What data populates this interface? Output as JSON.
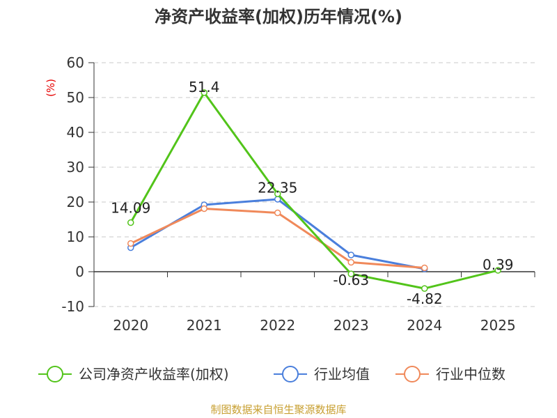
{
  "chart_data": {
    "type": "line",
    "title": "净资产收益率(加权)历年情况(%)",
    "ylabel": "(%)",
    "xlabel": "",
    "categories": [
      "2020",
      "2021",
      "2022",
      "2023",
      "2024",
      "2025"
    ],
    "ylim": [
      -10,
      60
    ],
    "yticks": [
      -10,
      0,
      10,
      20,
      30,
      40,
      50,
      60
    ],
    "grid": "horizontal-dashed",
    "legend_position": "bottom",
    "series": [
      {
        "name": "公司净资产收益率(加权)",
        "color": "#52c41a",
        "values": [
          14.09,
          51.4,
          22.35,
          -0.63,
          -4.82,
          0.39
        ],
        "labels": [
          "14.09",
          "51.4",
          "22.35",
          "-0.63",
          "-4.82",
          "0.39"
        ]
      },
      {
        "name": "行业均值",
        "color": "#4a7fdc",
        "values": [
          6.9,
          19.2,
          20.8,
          4.8,
          0.8,
          null
        ]
      },
      {
        "name": "行业中位数",
        "color": "#f0895a",
        "values": [
          8.1,
          18.1,
          16.9,
          2.7,
          1.1,
          null
        ]
      }
    ],
    "source": "制图数据来自恒生聚源数据库"
  }
}
